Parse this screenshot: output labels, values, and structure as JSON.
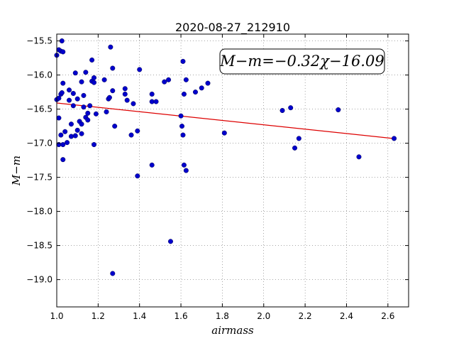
{
  "chart_data": {
    "type": "scatter",
    "title": "2020-08-27_212910",
    "xlabel": "airmass",
    "ylabel": "M−m",
    "xlim": [
      1.0,
      2.7
    ],
    "ylim": [
      -19.4,
      -15.4
    ],
    "y_inverted": true,
    "grid": true,
    "x_ticks": [
      1.0,
      1.2,
      1.4,
      1.6,
      1.8,
      2.0,
      2.2,
      2.4,
      2.6
    ],
    "x_tick_labels": [
      "1.0",
      "1.2",
      "1.4",
      "1.6",
      "1.8",
      "2.0",
      "2.2",
      "2.4",
      "2.6"
    ],
    "y_ticks": [
      -15.5,
      -16.0,
      -16.5,
      -17.0,
      -17.5,
      -18.0,
      -18.5,
      -19.0
    ],
    "y_tick_labels": [
      "−15.5",
      "−16.0",
      "−16.5",
      "−17.0",
      "−17.5",
      "−18.0",
      "−18.5",
      "−19.0"
    ],
    "point_color": "#0000cc",
    "fit_color": "#dd0000",
    "annotation": "M−m=−0.32χ−16.09",
    "annotation_position": "top-right",
    "fit": {
      "slope": -0.32,
      "intercept": -16.09,
      "x_range": [
        1.0,
        2.64
      ]
    },
    "points": [
      [
        1.0,
        -15.71
      ],
      [
        1.01,
        -15.63
      ],
      [
        1.02,
        -15.65
      ],
      [
        1.03,
        -15.66
      ],
      [
        1.025,
        -15.5
      ],
      [
        1.0,
        -16.36
      ],
      [
        1.01,
        -16.34
      ],
      [
        1.02,
        -16.28
      ],
      [
        1.025,
        -16.26
      ],
      [
        1.03,
        -16.12
      ],
      [
        1.01,
        -16.63
      ],
      [
        1.02,
        -16.88
      ],
      [
        1.01,
        -17.02
      ],
      [
        1.03,
        -17.02
      ],
      [
        1.04,
        -16.83
      ],
      [
        1.05,
        -16.99
      ],
      [
        1.03,
        -17.24
      ],
      [
        1.06,
        -16.22
      ],
      [
        1.06,
        -16.37
      ],
      [
        1.08,
        -16.27
      ],
      [
        1.08,
        -16.45
      ],
      [
        1.07,
        -16.72
      ],
      [
        1.07,
        -16.9
      ],
      [
        1.09,
        -16.89
      ],
      [
        1.09,
        -15.97
      ],
      [
        1.1,
        -16.35
      ],
      [
        1.1,
        -16.81
      ],
      [
        1.11,
        -16.68
      ],
      [
        1.12,
        -16.86
      ],
      [
        1.12,
        -16.72
      ],
      [
        1.12,
        -16.1
      ],
      [
        1.13,
        -16.3
      ],
      [
        1.13,
        -16.47
      ],
      [
        1.14,
        -16.62
      ],
      [
        1.14,
        -15.96
      ],
      [
        1.15,
        -16.56
      ],
      [
        1.15,
        -16.66
      ],
      [
        1.16,
        -16.45
      ],
      [
        1.17,
        -16.09
      ],
      [
        1.17,
        -15.78
      ],
      [
        1.18,
        -16.11
      ],
      [
        1.18,
        -16.04
      ],
      [
        1.18,
        -17.02
      ],
      [
        1.19,
        -16.57
      ],
      [
        1.23,
        -16.07
      ],
      [
        1.24,
        -16.54
      ],
      [
        1.25,
        -16.35
      ],
      [
        1.255,
        -16.33
      ],
      [
        1.26,
        -15.59
      ],
      [
        1.27,
        -15.9
      ],
      [
        1.27,
        -16.23
      ],
      [
        1.27,
        -18.91
      ],
      [
        1.28,
        -16.75
      ],
      [
        1.33,
        -16.2
      ],
      [
        1.33,
        -16.28
      ],
      [
        1.34,
        -16.37
      ],
      [
        1.36,
        -16.88
      ],
      [
        1.37,
        -16.42
      ],
      [
        1.39,
        -16.82
      ],
      [
        1.39,
        -17.48
      ],
      [
        1.4,
        -15.92
      ],
      [
        1.46,
        -16.28
      ],
      [
        1.46,
        -16.39
      ],
      [
        1.46,
        -17.32
      ],
      [
        1.48,
        -16.39
      ],
      [
        1.52,
        -16.1
      ],
      [
        1.54,
        -16.07
      ],
      [
        1.55,
        -18.44
      ],
      [
        1.6,
        -16.6
      ],
      [
        1.605,
        -16.75
      ],
      [
        1.61,
        -16.88
      ],
      [
        1.61,
        -15.8
      ],
      [
        1.615,
        -16.28
      ],
      [
        1.615,
        -17.32
      ],
      [
        1.625,
        -16.07
      ],
      [
        1.625,
        -17.4
      ],
      [
        1.67,
        -16.25
      ],
      [
        1.7,
        -16.19
      ],
      [
        1.73,
        -16.12
      ],
      [
        1.81,
        -16.85
      ],
      [
        2.09,
        -16.52
      ],
      [
        2.13,
        -16.48
      ],
      [
        2.15,
        -17.07
      ],
      [
        2.17,
        -16.93
      ],
      [
        2.36,
        -16.51
      ],
      [
        2.46,
        -17.2
      ],
      [
        2.63,
        -16.93
      ]
    ]
  }
}
